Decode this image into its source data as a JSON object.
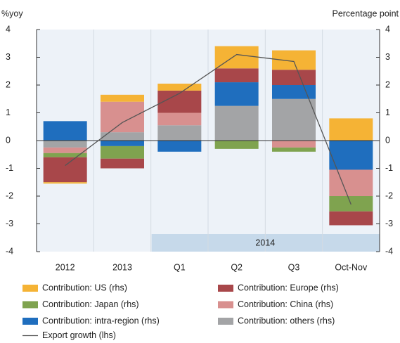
{
  "chart_data": {
    "type": "stacked-bar-line",
    "y_label": "%yoy",
    "y2_label": "Percentage point",
    "categories": [
      "2012",
      "2013",
      "Q1",
      "Q2",
      "Q3",
      "Oct-Nov"
    ],
    "group_label": "2014",
    "series": [
      {
        "name": "Contribution: US (rhs)",
        "color": "#f5b335",
        "axis": "y2",
        "values": [
          -0.05,
          0.25,
          0.25,
          0.8,
          0.7,
          0.8
        ]
      },
      {
        "name": "Contribution: Europe (rhs)",
        "color": "#a8474a",
        "axis": "y2",
        "values": [
          -0.9,
          -0.35,
          0.8,
          0.5,
          0.55,
          -0.5
        ]
      },
      {
        "name": "Contribution: Japan (rhs)",
        "color": "#7fa34f",
        "axis": "y2",
        "values": [
          -0.15,
          -0.45,
          0,
          -0.3,
          -0.15,
          -0.55
        ]
      },
      {
        "name": "Contribution: China (rhs)",
        "color": "#d8908f",
        "axis": "y2",
        "values": [
          -0.2,
          1.1,
          0.45,
          0,
          -0.25,
          -0.95
        ]
      },
      {
        "name": "Contribution: intra-region (rhs)",
        "color": "#1f6ebe",
        "axis": "y2",
        "values": [
          0.7,
          -0.2,
          -0.4,
          0.85,
          0.5,
          -1.05
        ]
      },
      {
        "name": "Contribution: others (rhs)",
        "color": "#a3a4a6",
        "axis": "y2",
        "values": [
          -0.25,
          0.3,
          0.55,
          1.25,
          1.5,
          0
        ]
      }
    ],
    "line": {
      "name": "Export growth (lhs)",
      "color": "#555555",
      "values": [
        -0.9,
        0.65,
        1.7,
        3.1,
        2.85,
        -2.3
      ]
    },
    "ylim": [
      -4,
      4
    ],
    "yticks": [
      -4,
      -3,
      -2,
      -1,
      0,
      1,
      2,
      3,
      4
    ],
    "y2lim": [
      -4,
      4
    ],
    "y2ticks": [
      -4,
      -3,
      -2,
      -1,
      0,
      1,
      2,
      3,
      4
    ]
  }
}
